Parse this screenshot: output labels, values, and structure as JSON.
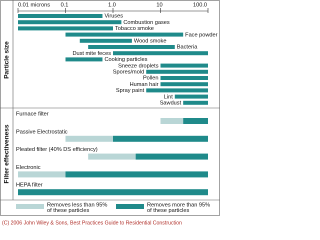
{
  "chart_data": {
    "type": "range-bar",
    "xscale": "log",
    "xlim": [
      0.01,
      100
    ],
    "xticks": [
      {
        "value": 0.01,
        "label": "0.01 microns"
      },
      0.1,
      {
        "value": 1,
        "label": "1.0"
      },
      10,
      {
        "value": 100,
        "label": "100.0"
      }
    ],
    "sections": [
      "Particle size",
      "Filter effectiveness"
    ],
    "particles": [
      {
        "name": "Viruses",
        "range": [
          0.01,
          0.6
        ]
      },
      {
        "name": "Combustion gases",
        "range": [
          0.01,
          1.5
        ]
      },
      {
        "name": "Tobacco smoke",
        "range": [
          0.01,
          1
        ]
      },
      {
        "name": "Face powder",
        "range": [
          0.1,
          30
        ]
      },
      {
        "name": "Wood smoke",
        "range": [
          0.2,
          2.5
        ]
      },
      {
        "name": "Bacteria",
        "range": [
          0.3,
          20
        ]
      },
      {
        "name": "Dust mite feces",
        "range": [
          1,
          100
        ]
      },
      {
        "name": "Cooking particles",
        "range": [
          0.1,
          0.6
        ]
      },
      {
        "name": "Sneeze droplets",
        "range": [
          10,
          100
        ]
      },
      {
        "name": "Spores/mold",
        "range": [
          5,
          100
        ]
      },
      {
        "name": "Pollen",
        "range": [
          10,
          100
        ]
      },
      {
        "name": "Human hair",
        "range": [
          10,
          100
        ]
      },
      {
        "name": "Spray paint",
        "range": [
          5,
          100
        ]
      },
      {
        "name": "Lint",
        "range": [
          20,
          100
        ]
      },
      {
        "name": "Sawdust",
        "range": [
          30,
          100
        ]
      }
    ],
    "series": [
      {
        "name": [
          "Removes less than 95%",
          "of these particles"
        ],
        "color": "#b9d6d6"
      },
      {
        "name": [
          "Removes more than 95%",
          "of these particles"
        ],
        "color": "#1f8a8a"
      }
    ],
    "filters": [
      {
        "name": "Furnace filter",
        "ranges": [
          [
            10,
            30
          ],
          [
            30,
            100
          ]
        ]
      },
      {
        "name": "Passive Electrostatic",
        "ranges": [
          [
            0.1,
            1
          ],
          [
            1,
            100
          ]
        ]
      },
      {
        "name": "Pleated filter (40% DS efficiency)",
        "ranges": [
          [
            0.3,
            3
          ],
          [
            3,
            100
          ]
        ]
      },
      {
        "name": "Electronic",
        "ranges": [
          [
            0.01,
            0.1
          ],
          [
            0.1,
            100
          ]
        ]
      },
      {
        "name": "HEPA filter",
        "ranges": [
          null,
          [
            0.01,
            100
          ]
        ]
      }
    ],
    "credit": "(C) 2006 John Wiley & Sons, Best Practices Guide to Residential Construction"
  }
}
